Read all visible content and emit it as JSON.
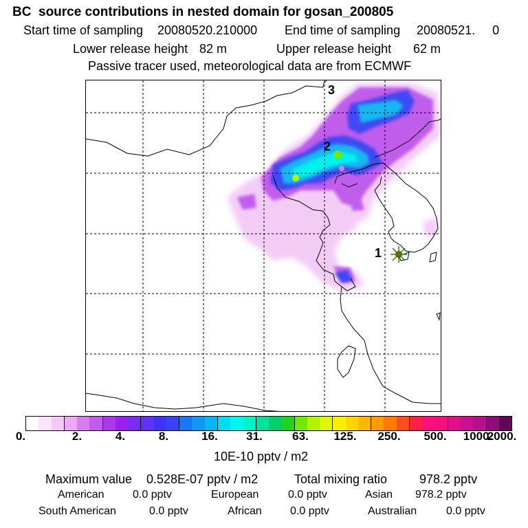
{
  "header": {
    "title": "BC  source contributions in nested domain for gosan_200805",
    "start_label": "Start time of sampling",
    "start_value": "20080520.210000",
    "end_label": "End time of sampling",
    "end_value": "20080521.     0",
    "lower_label": "Lower release height",
    "lower_value": "82 m",
    "upper_label": "Upper release height",
    "upper_value": "62 m",
    "note": "Passive tracer used, meteorological data are from ECMWF"
  },
  "map": {
    "markers": [
      {
        "label": "1"
      },
      {
        "label": "2"
      },
      {
        "label": "3"
      }
    ],
    "receptor_icon": "star-burst-icon"
  },
  "colorbar": {
    "colors": [
      "#ffffff",
      "#fbe4fb",
      "#f5c6f7",
      "#efa8f5",
      "#d57ef0",
      "#c35ced",
      "#ab38ec",
      "#9d1ff0",
      "#7a2df2",
      "#6131f5",
      "#4031f7",
      "#3345f7",
      "#1976f7",
      "#1097f5",
      "#06b6f2",
      "#00dff2",
      "#00f7ee",
      "#00f2c8",
      "#00e29c",
      "#00cf6a",
      "#1fd41d",
      "#73e800",
      "#b4f200",
      "#e0f700",
      "#f7f000",
      "#ffd500",
      "#ffb800",
      "#ff9b00",
      "#ff7a00",
      "#ff4d1f",
      "#ff1f47",
      "#ff0f7a",
      "#f5107e",
      "#e0108a",
      "#cc0f8e",
      "#b30f8f",
      "#8f0c7d",
      "#5e0858"
    ],
    "tick_labels": [
      "0.",
      "2.",
      "4.",
      "8.",
      "16.",
      "31.",
      "63.",
      "125.",
      "250.",
      "500.",
      "1000.",
      "2000."
    ],
    "unit": "10E-10 pptv / m2"
  },
  "stats": {
    "max_label": "Maximum value",
    "max_value": "0.528E-07 pptv / m2",
    "total_label": "Total mixing ratio",
    "total_value": "978.2 pptv",
    "regions": [
      {
        "name": "American",
        "value": "0.0 pptv"
      },
      {
        "name": "European",
        "value": "0.0 pptv"
      },
      {
        "name": "Asian",
        "value": "978.2 pptv"
      },
      {
        "name": "South American",
        "value": "0.0 pptv"
      },
      {
        "name": "African",
        "value": "0.0 pptv"
      },
      {
        "name": "Australian",
        "value": "0.0 pptv"
      }
    ]
  }
}
